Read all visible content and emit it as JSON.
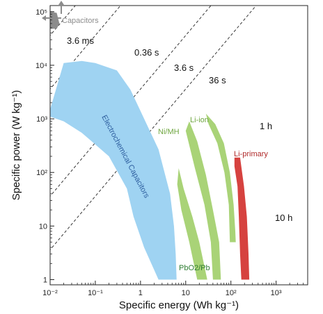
{
  "chart_data": {
    "type": "area",
    "title": "",
    "xlabel": "Specific energy (Wh kg⁻¹)",
    "ylabel": "Specific power (W kg⁻¹)",
    "x_scale": "log",
    "y_scale": "log",
    "xlim": [
      0.01,
      5000
    ],
    "ylim": [
      0.8,
      130000
    ],
    "x_ticks": [
      "10⁻²",
      "10⁻¹",
      "1",
      "10",
      "10²",
      "10³"
    ],
    "y_ticks": [
      "1",
      "10",
      "10²",
      "10³",
      "10⁴",
      "10⁵"
    ],
    "grid": false,
    "time_lines": [
      {
        "label": "3.6 ms"
      },
      {
        "label": "0.36 s"
      },
      {
        "label": "3.6 s"
      },
      {
        "label": "36 s"
      },
      {
        "label": "1 h"
      },
      {
        "label": "10 h"
      }
    ],
    "regions": [
      {
        "name": "Capacitors",
        "color": "#8c8c8c",
        "label_color": "#8c8c8c",
        "polygon": [
          [
            0.01,
            100000
          ],
          [
            0.014,
            95000
          ],
          [
            0.016,
            60000
          ],
          [
            0.014,
            48000
          ],
          [
            0.01,
            48000
          ]
        ]
      },
      {
        "name": "Electrochemical Capacitors",
        "color": "#9fd3f2",
        "label_color": "#2f5f9f",
        "polygon": [
          [
            0.01,
            1500
          ],
          [
            0.02,
            11000
          ],
          [
            0.05,
            12000
          ],
          [
            0.1,
            11000
          ],
          [
            0.3,
            8000
          ],
          [
            0.6,
            3500
          ],
          [
            1.0,
            1400
          ],
          [
            2.5,
            270
          ],
          [
            4.5,
            40
          ],
          [
            5.5,
            10
          ],
          [
            6,
            3
          ],
          [
            6.3,
            1
          ],
          [
            2.5,
            1
          ],
          [
            1.2,
            4
          ],
          [
            0.7,
            15
          ],
          [
            0.5,
            50
          ],
          [
            0.2,
            200
          ],
          [
            0.05,
            550
          ],
          [
            0.02,
            900
          ],
          [
            0.01,
            1100
          ]
        ]
      },
      {
        "name": "Ni/MH",
        "color": "#a9d377",
        "label_color": "#6fa640",
        "polygon": [
          [
            12,
            900
          ],
          [
            18,
            380
          ],
          [
            28,
            90
          ],
          [
            40,
            20
          ],
          [
            55,
            5
          ],
          [
            60,
            1
          ],
          [
            40,
            1
          ],
          [
            36,
            5
          ],
          [
            26,
            25
          ],
          [
            16,
            120
          ],
          [
            10,
            600
          ]
        ]
      },
      {
        "name": "PbO2/Pb",
        "color": "#a9d377",
        "label_color": "#2e7d32",
        "polygon": [
          [
            7,
            120
          ],
          [
            9,
            50
          ],
          [
            14,
            15
          ],
          [
            20,
            5
          ],
          [
            30,
            1
          ],
          [
            18,
            1
          ],
          [
            12,
            5
          ],
          [
            8,
            20
          ],
          [
            6.5,
            60
          ]
        ]
      },
      {
        "name": "Li-ion",
        "color": "#a9d377",
        "label_color": "#6fa640",
        "polygon": [
          [
            28,
            1250
          ],
          [
            45,
            800
          ],
          [
            70,
            350
          ],
          [
            95,
            100
          ],
          [
            115,
            25
          ],
          [
            125,
            8
          ],
          [
            128,
            5
          ],
          [
            95,
            5
          ],
          [
            90,
            25
          ],
          [
            72,
            100
          ],
          [
            50,
            350
          ],
          [
            32,
            800
          ]
        ]
      },
      {
        "name": "Li-primary",
        "color": "#d6423f",
        "label_color": "#b02a2a",
        "polygon": [
          [
            120,
            190
          ],
          [
            160,
            190
          ],
          [
            195,
            55
          ],
          [
            225,
            15
          ],
          [
            245,
            3
          ],
          [
            255,
            1
          ],
          [
            170,
            1
          ],
          [
            160,
            3
          ],
          [
            150,
            15
          ],
          [
            140,
            55
          ],
          [
            120,
            130
          ]
        ]
      }
    ]
  }
}
